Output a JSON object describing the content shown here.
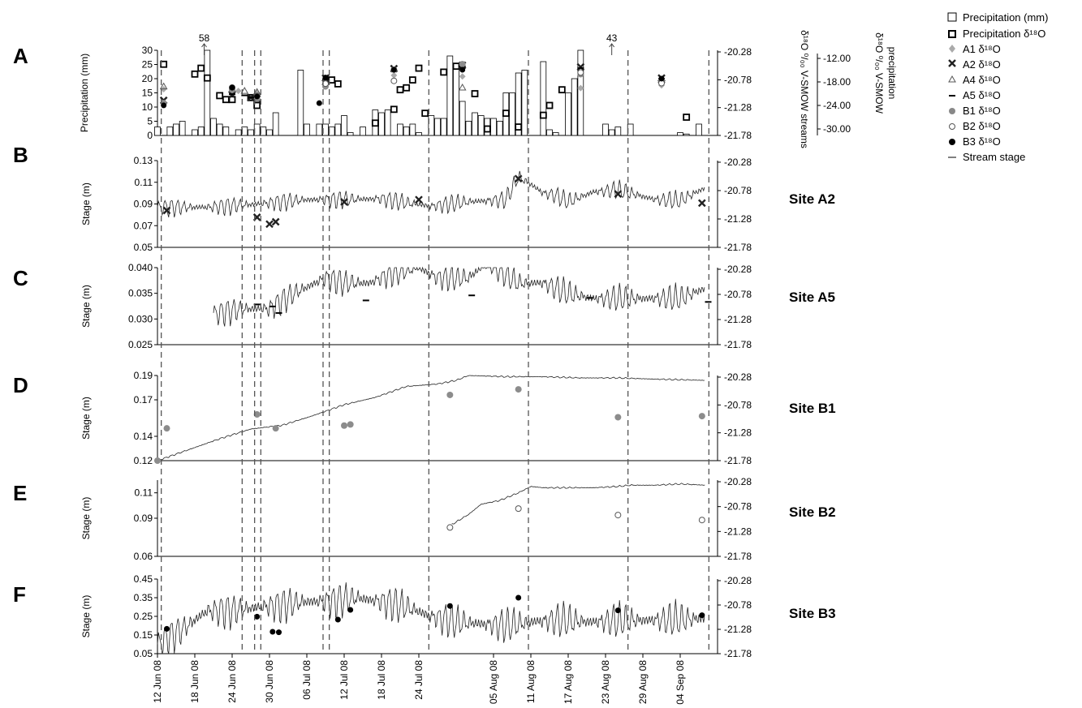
{
  "figure": {
    "legend": [
      {
        "key": "precip_mm",
        "label": "Precipitation (mm)",
        "symbol": "open-square-large"
      },
      {
        "key": "precip_d18o",
        "label": "Precipitation δ¹⁸O",
        "symbol": "bold-square"
      },
      {
        "key": "A1",
        "label": "A1 δ¹⁸O",
        "symbol": "grey-diamond"
      },
      {
        "key": "A2",
        "label": "A2 δ¹⁸O",
        "symbol": "bold-x"
      },
      {
        "key": "A4",
        "label": "A4 δ¹⁸O",
        "symbol": "open-triangle"
      },
      {
        "key": "A5",
        "label": "A5 δ¹⁸O",
        "symbol": "dash"
      },
      {
        "key": "B1",
        "label": "B1 δ¹⁸O",
        "symbol": "grey-circle"
      },
      {
        "key": "B2",
        "label": "B2 δ¹⁸O",
        "symbol": "open-circle"
      },
      {
        "key": "B3",
        "label": "B3 δ¹⁸O",
        "symbol": "black-circle"
      },
      {
        "key": "stage",
        "label": "Stream stage",
        "symbol": "line"
      }
    ],
    "right_axis_label_streams": "δ¹⁸O ⁰/₀₀ V-SMOW streams",
    "right_axis_label_precip_line1": "δ¹⁸O ⁰/₀₀ V-SMOW",
    "right_axis_label_precip_line2": "precipitation",
    "x_ticks": [
      "12 Jun 08",
      "18 Jun 08",
      "24 Jun 08",
      "30 Jun 08",
      "06 Jul 08",
      "12 Jul 08",
      "18 Jul 08",
      "24 Jul 08",
      "05 Aug 08",
      "11 Aug 08",
      "17 Aug 08",
      "23 Aug 08",
      "29 Aug 08",
      "04 Sep 08"
    ],
    "sampling_dates": [
      "13 Jun 08",
      "26 Jun 08",
      "28 Jun 08",
      "29 Jun 08",
      "09 Jul 08",
      "10 Jul 08",
      "25 Jul 08",
      "11 Aug 08",
      "27 Aug 08",
      "09 Sep 08"
    ]
  },
  "chart_data": [
    {
      "panel": "A",
      "type": "bar",
      "ylabel": "Precipitation (mm)",
      "ylim": [
        0,
        30
      ],
      "yticks": [
        "0",
        "5",
        "10",
        "15",
        "20",
        "25",
        "30"
      ],
      "y2ticks": [
        "-20.28",
        "-20.78",
        "-21.28",
        "-21.78"
      ],
      "y3ticks": [
        "-12.00",
        "-18.00",
        "-24.00",
        "-30.00"
      ],
      "annotations": [
        {
          "text": "58",
          "day": 7.5
        },
        {
          "text": "43",
          "day": 73
        }
      ],
      "precip_mm": [
        [
          0,
          3
        ],
        [
          2,
          3
        ],
        [
          3,
          4
        ],
        [
          4,
          5
        ],
        [
          6,
          2
        ],
        [
          7,
          3
        ],
        [
          8,
          30
        ],
        [
          9,
          6
        ],
        [
          10,
          4
        ],
        [
          11,
          3
        ],
        [
          13,
          2
        ],
        [
          14,
          3
        ],
        [
          15,
          2
        ],
        [
          16,
          4
        ],
        [
          17,
          3
        ],
        [
          18,
          2
        ],
        [
          19,
          8
        ],
        [
          23,
          23
        ],
        [
          24,
          4
        ],
        [
          26,
          4
        ],
        [
          27,
          4
        ],
        [
          28,
          3
        ],
        [
          29,
          4
        ],
        [
          30,
          7
        ],
        [
          31,
          1
        ],
        [
          33,
          3
        ],
        [
          35,
          9
        ],
        [
          36,
          8
        ],
        [
          37,
          9
        ],
        [
          39,
          4
        ],
        [
          40,
          3
        ],
        [
          41,
          4
        ],
        [
          42,
          1
        ],
        [
          44,
          7
        ],
        [
          45,
          6
        ],
        [
          46,
          6
        ],
        [
          47,
          28
        ],
        [
          48,
          24
        ],
        [
          49,
          12
        ],
        [
          50,
          5
        ],
        [
          51,
          8
        ],
        [
          52,
          7
        ],
        [
          53,
          6
        ],
        [
          54,
          6
        ],
        [
          55,
          5
        ],
        [
          56,
          15
        ],
        [
          57,
          15
        ],
        [
          58,
          22
        ],
        [
          59,
          23
        ],
        [
          62,
          26
        ],
        [
          63,
          2
        ],
        [
          64,
          1
        ],
        [
          66,
          15
        ],
        [
          67,
          20
        ],
        [
          68,
          30
        ],
        [
          72,
          4
        ],
        [
          73,
          2
        ],
        [
          74,
          3
        ],
        [
          76,
          4
        ],
        [
          84,
          1
        ],
        [
          85,
          0.5
        ],
        [
          87,
          4
        ]
      ],
      "precip_d18o": [
        [
          1,
          -13.5
        ],
        [
          6,
          -16
        ],
        [
          7,
          -14.5
        ],
        [
          8,
          -17
        ],
        [
          10,
          -21.5
        ],
        [
          11,
          -22.5
        ],
        [
          12,
          -22.5
        ],
        [
          15,
          -22
        ],
        [
          16,
          -24
        ],
        [
          28,
          -17.5
        ],
        [
          29,
          -18.5
        ],
        [
          35,
          -28.5
        ],
        [
          38,
          -25
        ],
        [
          39,
          -20
        ],
        [
          40,
          -19.5
        ],
        [
          41,
          -17.5
        ],
        [
          42,
          -14.5
        ],
        [
          43,
          -26
        ],
        [
          46,
          -15.5
        ],
        [
          48,
          -14
        ],
        [
          51,
          -21
        ],
        [
          53,
          -30
        ],
        [
          56,
          -26
        ],
        [
          58,
          -29.5
        ],
        [
          62,
          -26.5
        ],
        [
          63,
          -24
        ],
        [
          65,
          -20
        ],
        [
          85,
          -27
        ]
      ],
      "isotopes": {
        "A1": [
          [
            1,
            -20.95
          ],
          [
            13,
            -20.98
          ],
          [
            16,
            -21.02
          ],
          [
            27,
            -20.88
          ],
          [
            38,
            -20.7
          ],
          [
            49,
            -20.72
          ],
          [
            68,
            -20.93
          ],
          [
            81,
            -20.88
          ]
        ],
        "A2": [
          [
            1,
            -21.15
          ],
          [
            12,
            -21.05
          ],
          [
            15,
            -21.1
          ],
          [
            16,
            -21.12
          ],
          [
            27,
            -20.75
          ],
          [
            38,
            -20.58
          ],
          [
            49,
            -20.52
          ],
          [
            68,
            -20.55
          ],
          [
            81,
            -20.75
          ]
        ],
        "A4": [
          [
            1,
            -20.9
          ],
          [
            12,
            -20.95
          ],
          [
            14,
            -20.98
          ],
          [
            16,
            -21.0
          ],
          [
            27,
            -20.82
          ],
          [
            49,
            -20.92
          ],
          [
            81,
            -20.78
          ]
        ],
        "A5": [
          [
            12,
            -21.04
          ],
          [
            14,
            -21.06
          ],
          [
            15,
            -21.1
          ],
          [
            27,
            -20.77
          ],
          [
            38,
            -20.61
          ],
          [
            49,
            -20.54
          ],
          [
            68,
            -20.57
          ],
          [
            81,
            -20.76
          ]
        ],
        "B1": [
          [
            1,
            -21.2
          ],
          [
            12,
            -20.96
          ],
          [
            16,
            -21.12
          ],
          [
            27,
            -20.9
          ],
          [
            38,
            -20.6
          ],
          [
            49,
            -20.5
          ],
          [
            68,
            -20.68
          ],
          [
            81,
            -20.78
          ]
        ],
        "B2": [
          [
            12,
            -20.92
          ],
          [
            16,
            -21.07
          ],
          [
            27,
            -20.85
          ],
          [
            38,
            -20.8
          ],
          [
            68,
            -20.65
          ],
          [
            81,
            -20.84
          ]
        ],
        "B3": [
          [
            1,
            -21.24
          ],
          [
            12,
            -20.92
          ],
          [
            16,
            -21.08
          ],
          [
            26,
            -21.2
          ],
          [
            27,
            -20.74
          ],
          [
            38,
            -20.6
          ],
          [
            49,
            -20.6
          ],
          [
            81,
            -20.76
          ]
        ]
      }
    },
    {
      "panel": "B",
      "type": "line",
      "site": "Site A2",
      "ylabel": "Stage (m)",
      "ylim": [
        0.05,
        0.13
      ],
      "yticks": [
        "0.05",
        "0.07",
        "0.09",
        "0.11",
        "0.13"
      ],
      "y2ticks": [
        "-20.28",
        "-20.78",
        "-21.28",
        "-21.78"
      ],
      "isotope": "A2",
      "isotope_points": [
        [
          1.5,
          -21.13
        ],
        [
          16,
          -21.25
        ],
        [
          18,
          -21.37
        ],
        [
          19,
          -21.33
        ],
        [
          30,
          -20.98
        ],
        [
          42,
          -20.94
        ],
        [
          58,
          -20.57
        ],
        [
          74,
          -20.84
        ],
        [
          87.5,
          -21.0
        ]
      ],
      "stage": [
        [
          0,
          0.087
        ],
        [
          8,
          0.087
        ],
        [
          16,
          0.09
        ],
        [
          24,
          0.094
        ],
        [
          30,
          0.094
        ],
        [
          36,
          0.095
        ],
        [
          40,
          0.091
        ],
        [
          44,
          0.088
        ],
        [
          50,
          0.092
        ],
        [
          56,
          0.094
        ],
        [
          58,
          0.115
        ],
        [
          60,
          0.108
        ],
        [
          62,
          0.1
        ],
        [
          64,
          0.098
        ],
        [
          66,
          0.092
        ],
        [
          70,
          0.101
        ],
        [
          74,
          0.103
        ],
        [
          80,
          0.094
        ],
        [
          84,
          0.093
        ],
        [
          88,
          0.105
        ]
      ]
    },
    {
      "panel": "C",
      "type": "line",
      "site": "Site A5",
      "ylabel": "Stage (m)",
      "ylim": [
        0.025,
        0.04
      ],
      "yticks": [
        "0.025",
        "0.030",
        "0.035",
        "0.040"
      ],
      "y2ticks": [
        "-20.28",
        "-20.78",
        "-21.28",
        "-21.78"
      ],
      "isotope": "A5",
      "isotope_points": [
        [
          16,
          -20.98
        ],
        [
          18.5,
          -21.02
        ],
        [
          19.5,
          -21.15
        ],
        [
          33.5,
          -20.9
        ],
        [
          50.5,
          -20.8
        ],
        [
          69.5,
          -20.85
        ],
        [
          88.5,
          -20.93
        ]
      ],
      "stage": [
        [
          9,
          0.031
        ],
        [
          14,
          0.032
        ],
        [
          18,
          0.032
        ],
        [
          22,
          0.035
        ],
        [
          27,
          0.038
        ],
        [
          30,
          0.037
        ],
        [
          34,
          0.037
        ],
        [
          38,
          0.039
        ],
        [
          42,
          0.04
        ],
        [
          45,
          0.038
        ],
        [
          50,
          0.038
        ],
        [
          53,
          0.041
        ],
        [
          58,
          0.037
        ],
        [
          62,
          0.037
        ],
        [
          66,
          0.035
        ],
        [
          70,
          0.034
        ],
        [
          78,
          0.034
        ],
        [
          84,
          0.034
        ],
        [
          88,
          0.036
        ]
      ]
    },
    {
      "panel": "D",
      "type": "line",
      "site": "Site B1",
      "ylabel": "Stage (m)",
      "ylim": [
        0.12,
        0.19
      ],
      "yticks": [
        "0.12",
        "0.14",
        "0.17",
        "0.19"
      ],
      "y2ticks": [
        "-20.28",
        "-20.78",
        "-21.28",
        "-21.78"
      ],
      "isotope": "B1",
      "isotope_points": [
        [
          0,
          -21.78
        ],
        [
          1.5,
          -21.2
        ],
        [
          16,
          -20.95
        ],
        [
          19,
          -21.2
        ],
        [
          30,
          -21.15
        ],
        [
          31,
          -21.13
        ],
        [
          47,
          -20.6
        ],
        [
          58,
          -20.5
        ],
        [
          74,
          -21.0
        ],
        [
          87.5,
          -20.98
        ]
      ],
      "stage": [
        [
          0,
          0.12
        ],
        [
          5,
          0.129
        ],
        [
          10,
          0.138
        ],
        [
          15,
          0.146
        ],
        [
          20,
          0.149
        ],
        [
          25,
          0.157
        ],
        [
          30,
          0.166
        ],
        [
          35,
          0.172
        ],
        [
          40,
          0.181
        ],
        [
          45,
          0.183
        ],
        [
          48,
          0.186
        ],
        [
          50,
          0.19
        ],
        [
          56,
          0.189
        ],
        [
          62,
          0.189
        ],
        [
          68,
          0.188
        ],
        [
          74,
          0.188
        ],
        [
          80,
          0.187
        ],
        [
          88,
          0.186
        ]
      ]
    },
    {
      "panel": "E",
      "type": "line",
      "site": "Site B2",
      "ylabel": "Stage (m)",
      "ylim": [
        0.06,
        0.12
      ],
      "yticks": [
        "0.06",
        "0.09",
        "0.11"
      ],
      "y2ticks": [
        "-20.28",
        "-20.78",
        "-21.28",
        "-21.78"
      ],
      "isotope": "B2",
      "isotope_points": [
        [
          47,
          -21.2
        ],
        [
          58,
          -20.82
        ],
        [
          74,
          -20.95
        ],
        [
          87.5,
          -21.05
        ]
      ],
      "stage": [
        [
          47.3,
          0.085
        ],
        [
          50,
          0.093
        ],
        [
          52,
          0.101
        ],
        [
          55,
          0.104
        ],
        [
          58,
          0.11
        ],
        [
          60,
          0.115
        ],
        [
          62,
          0.114
        ],
        [
          66,
          0.114
        ],
        [
          70,
          0.114
        ],
        [
          74,
          0.115
        ],
        [
          76,
          0.116
        ],
        [
          80,
          0.116
        ],
        [
          84,
          0.117
        ],
        [
          88,
          0.116
        ]
      ]
    },
    {
      "panel": "F",
      "type": "line",
      "site": "Site B3",
      "ylabel": "Stage (m)",
      "ylim": [
        0.05,
        0.45
      ],
      "yticks": [
        "0.05",
        "0.15",
        "0.25",
        "0.35",
        "0.45"
      ],
      "y2ticks": [
        "-20.28",
        "-20.78",
        "-21.28",
        "-21.78"
      ],
      "isotope": "B3",
      "isotope_points": [
        [
          1.5,
          -21.27
        ],
        [
          16,
          -21.02
        ],
        [
          18.5,
          -21.33
        ],
        [
          19.5,
          -21.34
        ],
        [
          29,
          -21.08
        ],
        [
          31,
          -20.88
        ],
        [
          47,
          -20.8
        ],
        [
          58,
          -20.63
        ],
        [
          74,
          -20.89
        ],
        [
          87.5,
          -20.99
        ]
      ],
      "stage": [
        [
          0,
          0.1
        ],
        [
          4,
          0.18
        ],
        [
          8,
          0.28
        ],
        [
          12,
          0.28
        ],
        [
          16,
          0.3
        ],
        [
          20,
          0.31
        ],
        [
          24,
          0.33
        ],
        [
          28,
          0.33
        ],
        [
          32,
          0.35
        ],
        [
          36,
          0.33
        ],
        [
          40,
          0.3
        ],
        [
          44,
          0.25
        ],
        [
          48,
          0.22
        ],
        [
          52,
          0.21
        ],
        [
          56,
          0.2
        ],
        [
          60,
          0.22
        ],
        [
          64,
          0.23
        ],
        [
          70,
          0.22
        ],
        [
          76,
          0.23
        ],
        [
          82,
          0.23
        ],
        [
          88,
          0.24
        ]
      ]
    }
  ]
}
